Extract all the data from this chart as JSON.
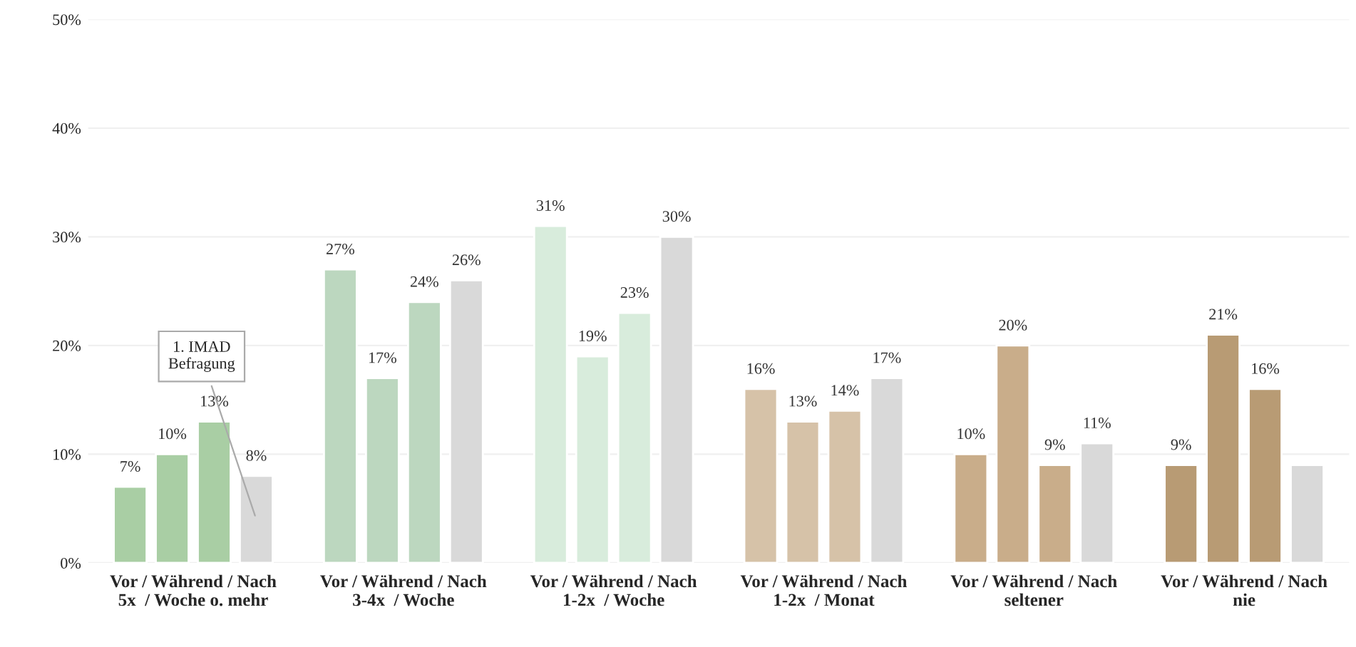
{
  "chart_data": {
    "type": "bar",
    "categories": [
      "Vor / Während / Nach\n5x  / Woche o. mehr",
      "Vor / Während / Nach\n3-4x  / Woche",
      "Vor / Während / Nach\n1-2x  / Woche",
      "Vor / Während / Nach\n1-2x  / Monat",
      "Vor / Während / Nach\nseltener",
      "Vor / Während / Nach\nnie"
    ],
    "series": [
      {
        "colors": [
          "#a9cea4",
          "#bcd7bf",
          "#d8ecdc",
          "#d6c2a8",
          "#c9ad8a",
          "#b89b74"
        ],
        "values": [
          7,
          27,
          31,
          16,
          10,
          9
        ],
        "value_labels": [
          "7%",
          "27%",
          "31%",
          "16%",
          "10%",
          "9%"
        ]
      },
      {
        "colors": [
          "#a9cea4",
          "#bcd7bf",
          "#d8ecdc",
          "#d6c2a8",
          "#c9ad8a",
          "#b89b74"
        ],
        "values": [
          10,
          17,
          19,
          13,
          20,
          21
        ],
        "value_labels": [
          "10%",
          "17%",
          "19%",
          "13%",
          "20%",
          "21%"
        ]
      },
      {
        "colors": [
          "#a9cea4",
          "#bcd7bf",
          "#d8ecdc",
          "#d6c2a8",
          "#c9ad8a",
          "#b89b74"
        ],
        "values": [
          13,
          24,
          23,
          14,
          9,
          16
        ],
        "value_labels": [
          "13%",
          "24%",
          "23%",
          "14%",
          "9%",
          "16%"
        ]
      },
      {
        "color": "#d9d9d9",
        "values": [
          8,
          26,
          30,
          17,
          11,
          9
        ],
        "value_labels": [
          "8%",
          "26%",
          "30%",
          "17%",
          "11%",
          null
        ]
      }
    ],
    "ylim": [
      0,
      50
    ],
    "yticks": [
      {
        "value": 0,
        "label": "0%"
      },
      {
        "value": 10,
        "label": "10%"
      },
      {
        "value": 20,
        "label": "20%"
      },
      {
        "value": 30,
        "label": "30%"
      },
      {
        "value": 40,
        "label": "40%"
      },
      {
        "value": 50,
        "label": "50%"
      }
    ],
    "grid": "y",
    "annotations": [
      "1. IMAD\nBefragung"
    ]
  }
}
